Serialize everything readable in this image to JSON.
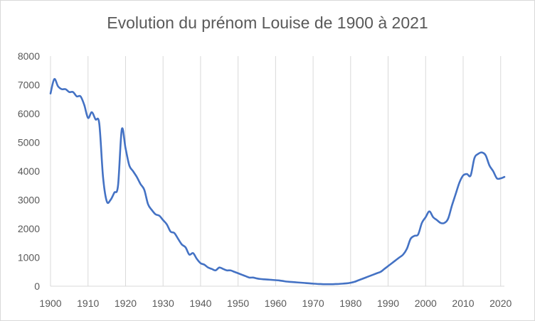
{
  "chart_data": {
    "type": "line",
    "title": "Evolution du prénom Louise de 1900 à 2021",
    "xlabel": "",
    "ylabel": "",
    "xlim": [
      1900,
      2021
    ],
    "ylim": [
      0,
      8000
    ],
    "x_ticks": [
      "1900",
      "1910",
      "1920",
      "1930",
      "1940",
      "1950",
      "1960",
      "1970",
      "1980",
      "1990",
      "2000",
      "2010",
      "2020"
    ],
    "y_ticks": [
      "0",
      "1000",
      "2000",
      "3000",
      "4000",
      "5000",
      "6000",
      "7000",
      "8000"
    ],
    "grid": "vertical",
    "legend": "none",
    "line_color": "#4472c4",
    "series": [
      {
        "x": [
          1900,
          1901,
          1902,
          1903,
          1904,
          1905,
          1906,
          1907,
          1908,
          1909,
          1910,
          1911,
          1912,
          1913,
          1914,
          1915,
          1916,
          1917,
          1918,
          1919,
          1920,
          1921,
          1922,
          1923,
          1924,
          1925,
          1926,
          1927,
          1928,
          1929,
          1930,
          1931,
          1932,
          1933,
          1934,
          1935,
          1936,
          1937,
          1938,
          1939,
          1940,
          1941,
          1942,
          1943,
          1944,
          1945,
          1946,
          1947,
          1948,
          1949,
          1950,
          1951,
          1952,
          1953,
          1954,
          1955,
          1956,
          1957,
          1958,
          1959,
          1960,
          1961,
          1962,
          1963,
          1964,
          1965,
          1966,
          1967,
          1968,
          1969,
          1970,
          1971,
          1972,
          1973,
          1974,
          1975,
          1976,
          1977,
          1978,
          1979,
          1980,
          1981,
          1982,
          1983,
          1984,
          1985,
          1986,
          1987,
          1988,
          1989,
          1990,
          1991,
          1992,
          1993,
          1994,
          1995,
          1996,
          1997,
          1998,
          1999,
          2000,
          2001,
          2002,
          2003,
          2004,
          2005,
          2006,
          2007,
          2008,
          2009,
          2010,
          2011,
          2012,
          2013,
          2014,
          2015,
          2016,
          2017,
          2018,
          2019,
          2020,
          2021
        ],
        "values": [
          6700,
          7200,
          6950,
          6850,
          6850,
          6750,
          6750,
          6600,
          6600,
          6300,
          5850,
          6050,
          5800,
          5650,
          3800,
          2950,
          3000,
          3250,
          3500,
          5450,
          4800,
          4200,
          4000,
          3800,
          3550,
          3350,
          2850,
          2650,
          2500,
          2450,
          2300,
          2150,
          1900,
          1850,
          1650,
          1450,
          1350,
          1100,
          1150,
          950,
          800,
          750,
          650,
          600,
          550,
          650,
          600,
          550,
          550,
          500,
          450,
          400,
          350,
          300,
          300,
          270,
          250,
          240,
          230,
          220,
          210,
          200,
          180,
          160,
          150,
          140,
          130,
          120,
          110,
          100,
          90,
          80,
          75,
          70,
          70,
          70,
          75,
          80,
          90,
          100,
          120,
          150,
          200,
          250,
          300,
          350,
          400,
          450,
          500,
          600,
          700,
          800,
          900,
          1000,
          1100,
          1300,
          1650,
          1750,
          1800,
          2200,
          2400,
          2600,
          2400,
          2300,
          2200,
          2200,
          2350,
          2800,
          3200,
          3600,
          3850,
          3900,
          3850,
          4450,
          4600,
          4650,
          4550,
          4200,
          4000,
          3750,
          3750,
          3800
        ]
      }
    ]
  }
}
